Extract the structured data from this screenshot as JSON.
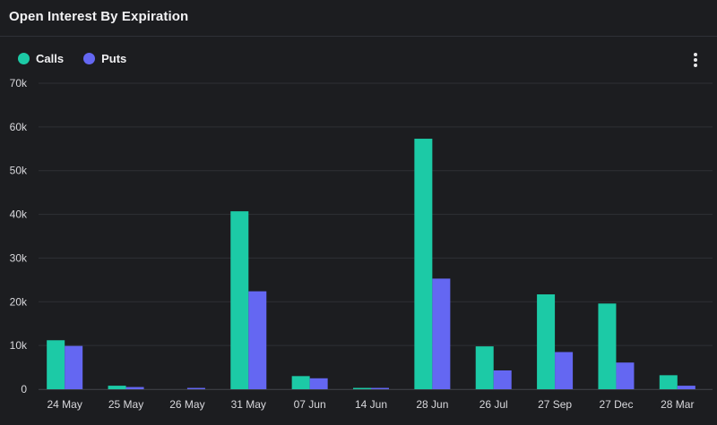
{
  "header": {
    "title": "Open Interest By Expiration"
  },
  "legend": {
    "calls_label": "Calls",
    "puts_label": "Puts"
  },
  "colors": {
    "calls": "#1ccaa6",
    "puts": "#6467f2",
    "grid": "#2e3034",
    "background": "#1c1d20"
  },
  "menu": {
    "icon": "more-vertical-icon"
  },
  "chart_data": {
    "type": "bar",
    "title": "Open Interest By Expiration",
    "xlabel": "",
    "ylabel": "",
    "ylim": [
      0,
      70000
    ],
    "yticks": [
      0,
      10000,
      20000,
      30000,
      40000,
      50000,
      60000,
      70000
    ],
    "ytick_labels": [
      "0",
      "10k",
      "20k",
      "30k",
      "40k",
      "50k",
      "60k",
      "70k"
    ],
    "grid": true,
    "legend_position": "top-left",
    "categories": [
      "24 May",
      "25 May",
      "26 May",
      "31 May",
      "07 Jun",
      "14 Jun",
      "28 Jun",
      "26 Jul",
      "27 Sep",
      "27 Dec",
      "28 Mar"
    ],
    "series": [
      {
        "name": "Calls",
        "values": [
          11200,
          800,
          0,
          40700,
          3000,
          300,
          57300,
          9800,
          21700,
          19600,
          3200
        ]
      },
      {
        "name": "Puts",
        "values": [
          9900,
          500,
          300,
          22400,
          2500,
          300,
          25300,
          4300,
          8500,
          6100,
          800
        ]
      }
    ]
  }
}
